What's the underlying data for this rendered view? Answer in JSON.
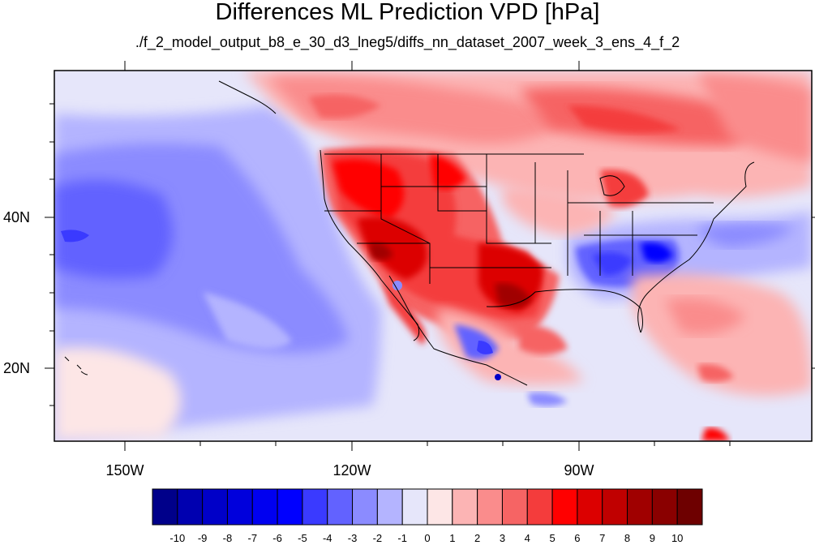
{
  "title": "Differences ML Prediction VPD [hPa]",
  "subtitle": "./f_2_model_output_b8_e_30_d3_lneg5/diffs_nn_dataset_2007_week_3_ens_4_f_2",
  "lat_labels": [
    "40N",
    "20N"
  ],
  "lon_labels": [
    "150W",
    "120W",
    "90W"
  ],
  "colorbar": {
    "labels": [
      "-10",
      "-9",
      "-8",
      "-7",
      "-6",
      "-5",
      "-4",
      "-3",
      "-2",
      "-1",
      "0",
      "1",
      "2",
      "3",
      "4",
      "5",
      "6",
      "7",
      "8",
      "9",
      "10"
    ],
    "colors": [
      "#00008a",
      "#0000b0",
      "#0000c8",
      "#0000dc",
      "#0000f0",
      "#0000ff",
      "#3a3aff",
      "#6262ff",
      "#8b8bff",
      "#b4b4ff",
      "#e6e6fa",
      "#fde6e6",
      "#fcb4b4",
      "#fa8c8c",
      "#f66464",
      "#f43c3c",
      "#ff0000",
      "#dc0000",
      "#c00000",
      "#a00000",
      "#8a0000",
      "#6e0000"
    ]
  }
}
